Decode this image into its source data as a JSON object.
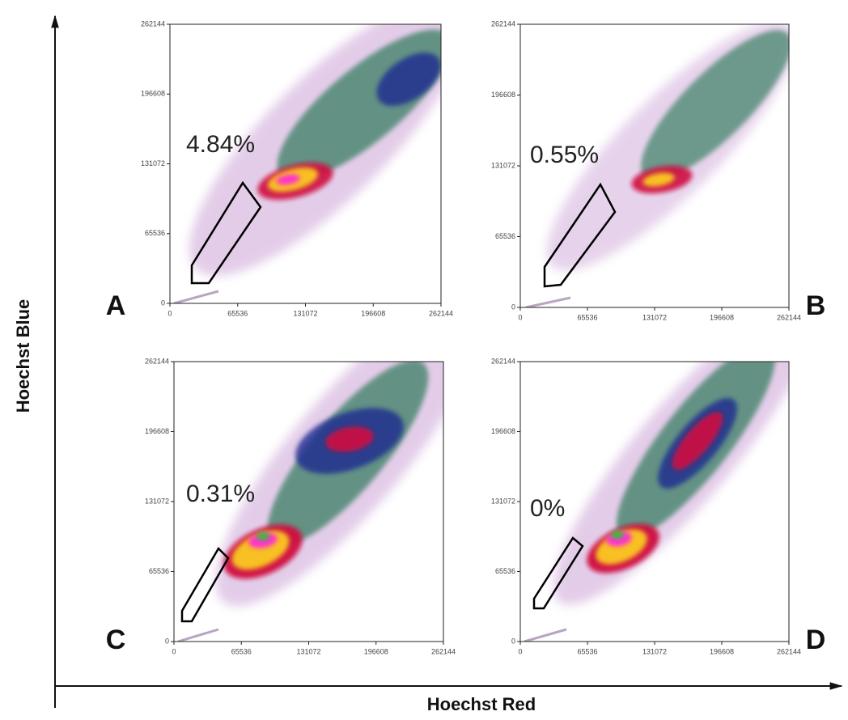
{
  "axis_labels": {
    "x": "Hoechst Red",
    "y": "Hoechst Blue"
  },
  "chart_data": [
    {
      "type": "scatter",
      "panel": "A",
      "annotation": "4.84%",
      "xlim": [
        0,
        262144
      ],
      "ylim": [
        0,
        262144
      ],
      "xticks": [
        0,
        65536,
        131072,
        196608,
        262144
      ],
      "yticks": [
        0,
        65536,
        131072,
        196608,
        262144
      ]
    },
    {
      "type": "scatter",
      "panel": "B",
      "annotation": "0.55%",
      "xlim": [
        0,
        262144
      ],
      "ylim": [
        0,
        262144
      ],
      "xticks": [
        0,
        65536,
        131072,
        196608,
        262144
      ],
      "yticks": [
        0,
        65536,
        131072,
        196608,
        262144
      ]
    },
    {
      "type": "scatter",
      "panel": "C",
      "annotation": "0.31%",
      "xlim": [
        0,
        262144
      ],
      "ylim": [
        0,
        262144
      ],
      "xticks": [
        0,
        65536,
        131072,
        196608,
        262144
      ],
      "yticks": [
        0,
        65536,
        131072,
        196608,
        262144
      ]
    },
    {
      "type": "scatter",
      "panel": "D",
      "annotation": "0%",
      "xlim": [
        0,
        262144
      ],
      "ylim": [
        0,
        262144
      ],
      "xticks": [
        0,
        65536,
        131072,
        196608,
        262144
      ],
      "yticks": [
        0,
        65536,
        131072,
        196608,
        262144
      ]
    }
  ]
}
